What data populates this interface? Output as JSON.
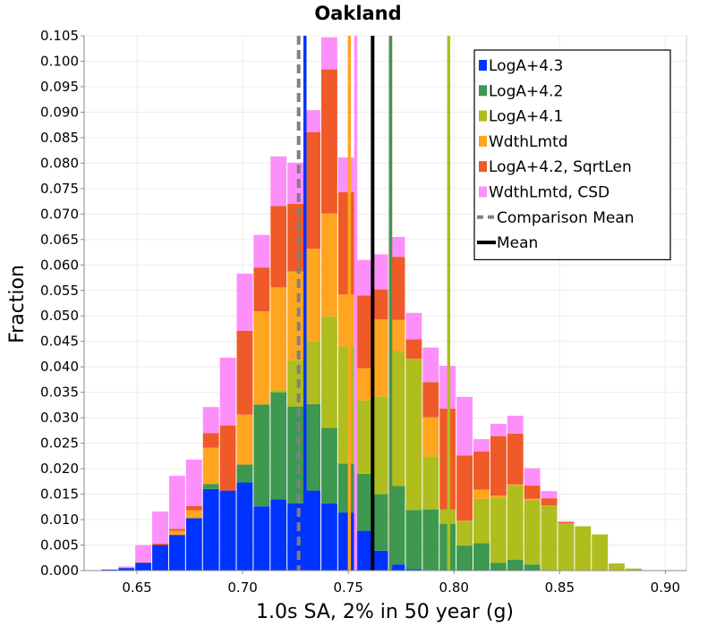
{
  "chart_data": {
    "type": "bar",
    "title": "Oakland",
    "xlabel": "1.0s SA, 2% in 50 year (g)",
    "ylabel": "Fraction",
    "xlim": [
      0.625,
      0.91
    ],
    "ylim": [
      0,
      0.105
    ],
    "xticks": [
      "0.65",
      "0.70",
      "0.75",
      "0.80",
      "0.85",
      "0.90"
    ],
    "yticks": [
      "0.000",
      "0.005",
      "0.010",
      "0.015",
      "0.020",
      "0.025",
      "0.030",
      "0.035",
      "0.040",
      "0.045",
      "0.050",
      "0.055",
      "0.060",
      "0.065",
      "0.070",
      "0.075",
      "0.080",
      "0.085",
      "0.090",
      "0.095",
      "0.100",
      "0.105"
    ],
    "grid": true,
    "legend_position": "top-right",
    "bin_starts": [
      0.633,
      0.641,
      0.649,
      0.657,
      0.665,
      0.673,
      0.681,
      0.689,
      0.697,
      0.705,
      0.713,
      0.721,
      0.729,
      0.737,
      0.745,
      0.753,
      0.761,
      0.769,
      0.777,
      0.785,
      0.793,
      0.801,
      0.809,
      0.817,
      0.825,
      0.833,
      0.841,
      0.849,
      0.857,
      0.865,
      0.873,
      0.881,
      0.889
    ],
    "bin_width": 0.008,
    "series": [
      {
        "name": "LogA+4.3",
        "color": "#0033ff",
        "values": [
          0.0002,
          0.0005,
          0.0015,
          0.005,
          0.007,
          0.0103,
          0.016,
          0.0157,
          0.0173,
          0.0126,
          0.014,
          0.0132,
          0.0157,
          0.0132,
          0.0114,
          0.0078,
          0.0039,
          0.0012,
          0.0003,
          0.0001,
          0,
          0,
          0,
          0,
          0,
          0,
          0,
          0,
          0,
          0,
          0,
          0,
          0
        ]
      },
      {
        "name": "LogA+4.2",
        "color": "#3d9850",
        "values": [
          0,
          0,
          0,
          0,
          0,
          0,
          0.001,
          0,
          0.0035,
          0.02,
          0.021,
          0.019,
          0.017,
          0.0148,
          0.0096,
          0.0112,
          0.0111,
          0.0154,
          0.0116,
          0.0119,
          0.0092,
          0.0049,
          0.0054,
          0.0015,
          0.0021,
          0.0012,
          0,
          0,
          0,
          0,
          0,
          0,
          0
        ]
      },
      {
        "name": "LogA+4.1",
        "color": "#b0bd1e",
        "values": [
          0,
          0,
          0,
          0,
          0,
          0,
          0,
          0,
          0,
          0,
          0.0005,
          0.0091,
          0.0123,
          0.0219,
          0.023,
          0.0144,
          0.0192,
          0.0265,
          0.0297,
          0.0104,
          0.0028,
          0.0049,
          0.0087,
          0.0128,
          0.0146,
          0.0126,
          0.0128,
          0.0093,
          0.0087,
          0.0071,
          0.0014,
          0.0004,
          0
        ]
      },
      {
        "name": "WdthLmtd",
        "color": "#ffa51f",
        "values": [
          0,
          0,
          0,
          0,
          0.0008,
          0.0015,
          0.0071,
          0,
          0.0098,
          0.0183,
          0.0201,
          0.0174,
          0.0182,
          0.0202,
          0.0102,
          0.0063,
          0.0151,
          0.0061,
          0.0,
          0.0077,
          0,
          0.0,
          0.0018,
          0.0004,
          0.0002,
          0.0003,
          0,
          0,
          0,
          0,
          0,
          0,
          0
        ]
      },
      {
        "name": "LogA+4.2, SqrtLen",
        "color": "#f05a28",
        "values": [
          0,
          0,
          0.0001,
          0.0003,
          0.0004,
          0.0009,
          0.0029,
          0.0128,
          0.0165,
          0.0086,
          0.016,
          0.0133,
          0.0229,
          0.0283,
          0.0201,
          0.0143,
          0.0059,
          0.0124,
          0.0038,
          0.0069,
          0.0198,
          0.0128,
          0.0075,
          0.0117,
          0.01,
          0.0026,
          0.0014,
          0.0002,
          0,
          0,
          0,
          0,
          0
        ]
      },
      {
        "name": "WdthLmtd, CSD",
        "color": "#fd8ffa",
        "values": [
          0,
          0.0003,
          0.0034,
          0.0063,
          0.0104,
          0.0091,
          0.0051,
          0.0133,
          0.0112,
          0.0064,
          0.0097,
          0.0081,
          0.0043,
          0.0063,
          0.0068,
          0.007,
          0.0069,
          0.0039,
          0.0052,
          0.0068,
          0.0084,
          0.0115,
          0.0024,
          0.0024,
          0.0035,
          0.0034,
          0.0014,
          0.0002,
          0,
          0,
          0,
          0,
          0
        ]
      }
    ],
    "lines": [
      {
        "name": "Comparison Mean",
        "x": 0.7265,
        "color": "#808080",
        "style": "dashed"
      },
      {
        "name": "Mean",
        "x": 0.7615,
        "color": "#000000",
        "style": "solid"
      }
    ],
    "series_means": [
      {
        "series": "LogA+4.3",
        "x": 0.7295,
        "color": "#0033ff"
      },
      {
        "series": "WdthLmtd",
        "x": 0.7505,
        "color": "#ffa51f"
      },
      {
        "series": "WdthLmtd, CSD",
        "x": 0.7535,
        "color": "#fd8ffa"
      },
      {
        "series": "LogA+4.2, SqrtLen",
        "x": 0.77,
        "color": "#f05a28"
      },
      {
        "series": "LogA+4.1",
        "x": 0.7975,
        "color": "#b0bd1e"
      },
      {
        "series": "LogA+4.2",
        "x": 0.77,
        "color": "#3d9850"
      }
    ]
  }
}
